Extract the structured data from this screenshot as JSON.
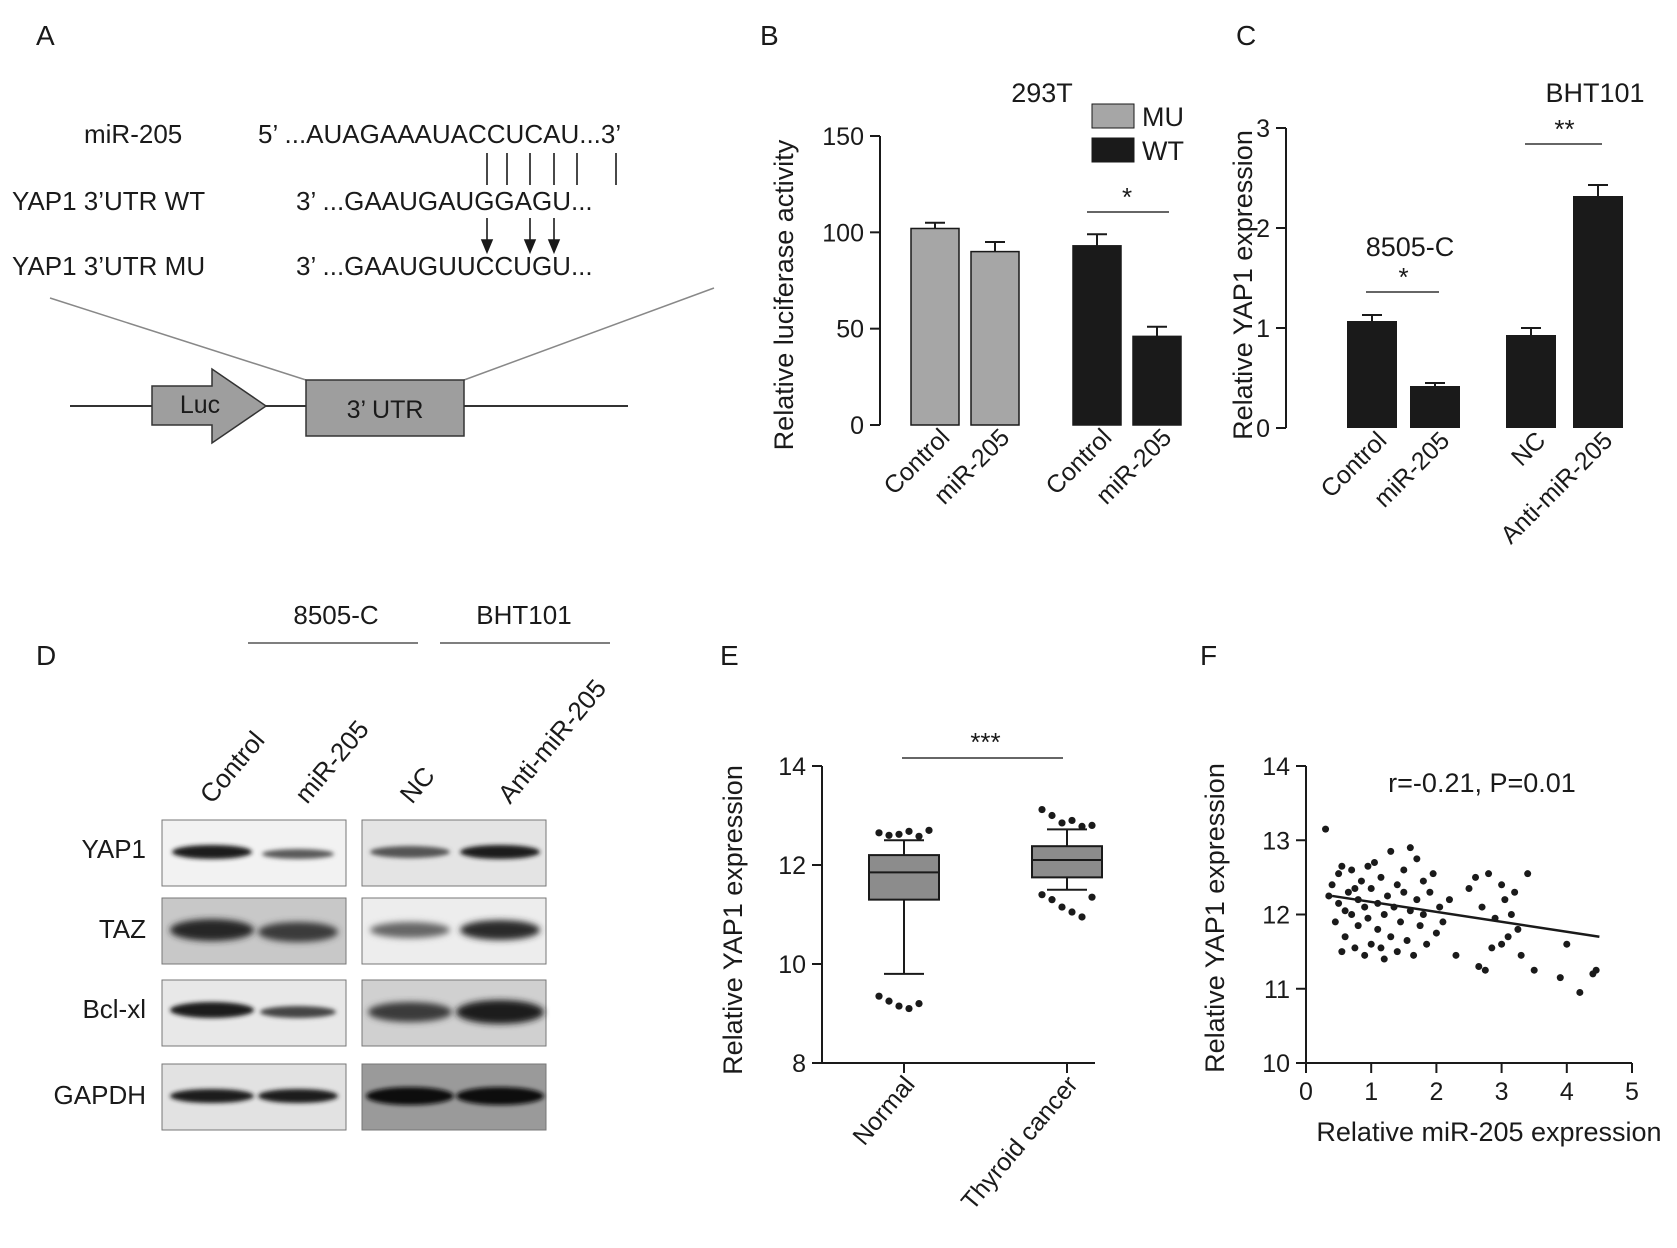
{
  "panels": {
    "A": {
      "letter": "A",
      "rows": [
        {
          "label": "miR-205",
          "seq": "5’ ...AUAGAAAUACCUCAU...3’"
        },
        {
          "label": "YAP1 3’UTR WT",
          "seq": "3’ ...GAAUGAUGGAGU..."
        },
        {
          "label": "YAP1 3’UTR MU",
          "seq": "3’ ...GAAUGUUCCUGU..."
        }
      ],
      "construct": {
        "luc": "Luc",
        "utr": "3’ UTR"
      }
    },
    "B": {
      "letter": "B"
    },
    "C": {
      "letter": "C"
    },
    "D": {
      "letter": "D",
      "groups": [
        "8505-C",
        "BHT101"
      ],
      "lanes": [
        "Control",
        "miR-205",
        "NC",
        "Anti-miR-205"
      ],
      "proteins": [
        "YAP1",
        "TAZ",
        "Bcl-xl",
        "GAPDH"
      ]
    },
    "E": {
      "letter": "E"
    },
    "F": {
      "letter": "F"
    }
  },
  "chart_data": [
    {
      "panel": "B",
      "type": "bar",
      "title": "293T",
      "ylabel": "Relative luciferase activity",
      "ylim": [
        0,
        150
      ],
      "yticks": [
        0,
        50,
        100,
        150
      ],
      "categories": [
        "Control",
        "miR-205",
        "Control",
        "miR-205"
      ],
      "values": [
        102,
        90,
        93,
        46
      ],
      "errors": [
        3,
        5,
        6,
        5
      ],
      "groups": [
        "MU",
        "MU",
        "WT",
        "WT"
      ],
      "legend": [
        {
          "name": "MU",
          "color": "#a6a6a6"
        },
        {
          "name": "WT",
          "color": "#1a1a1a"
        }
      ],
      "legend_position": "top-right",
      "significance": [
        {
          "from": 2,
          "to": 3,
          "label": "*"
        }
      ]
    },
    {
      "panel": "C",
      "type": "bar",
      "title": "BHT101",
      "ylabel": "Relative YAP1 expression",
      "ylim": [
        0,
        3
      ],
      "yticks": [
        0,
        1,
        2,
        3
      ],
      "categories": [
        "Control",
        "miR-205",
        "NC",
        "Anti-miR-205"
      ],
      "values": [
        1.07,
        0.42,
        0.93,
        2.32
      ],
      "errors": [
        0.06,
        0.03,
        0.07,
        0.11
      ],
      "color": "#1a1a1a",
      "annotations": [
        {
          "text": "8505-C",
          "near": [
            0,
            1
          ]
        }
      ],
      "significance": [
        {
          "from": 0,
          "to": 1,
          "label": "*"
        },
        {
          "from": 2,
          "to": 3,
          "label": "**"
        }
      ]
    },
    {
      "panel": "E",
      "type": "box",
      "ylabel": "Relative YAP1 expression",
      "ylim": [
        8,
        14
      ],
      "yticks": [
        8,
        10,
        12,
        14
      ],
      "categories": [
        "Normal",
        "Thyroid cancer"
      ],
      "boxes": [
        {
          "name": "Normal",
          "q1": 11.3,
          "median": 11.85,
          "q3": 12.2,
          "whisker_low": 9.8,
          "whisker_high": 12.5,
          "outliers": [
            12.65,
            12.6,
            12.62,
            12.68,
            12.58,
            12.7,
            9.35,
            9.25,
            9.15,
            9.1,
            9.2
          ]
        },
        {
          "name": "Thyroid cancer",
          "q1": 11.75,
          "median": 12.1,
          "q3": 12.38,
          "whisker_low": 11.5,
          "whisker_high": 12.72,
          "outliers": [
            13.12,
            13.0,
            12.85,
            12.9,
            12.78,
            12.8,
            11.4,
            11.3,
            11.15,
            11.05,
            10.95,
            11.35
          ]
        }
      ],
      "color": "#8c8c8c",
      "significance": [
        {
          "from": 0,
          "to": 1,
          "label": "***"
        }
      ]
    },
    {
      "panel": "F",
      "type": "scatter",
      "xlabel": "Relative miR-205 expression",
      "ylabel": "Relative YAP1 expression",
      "xlim": [
        0,
        5
      ],
      "ylim": [
        10,
        14
      ],
      "xticks": [
        0,
        1,
        2,
        3,
        4,
        5
      ],
      "yticks": [
        10,
        11,
        12,
        13,
        14
      ],
      "annotation": "r=-0.21, P=0.01",
      "regression": {
        "x": [
          0.4,
          4.5
        ],
        "y": [
          12.25,
          11.7
        ]
      },
      "points": [
        [
          0.3,
          13.15
        ],
        [
          0.35,
          12.25
        ],
        [
          0.4,
          12.4
        ],
        [
          0.45,
          11.9
        ],
        [
          0.5,
          12.15
        ],
        [
          0.5,
          12.55
        ],
        [
          0.55,
          11.5
        ],
        [
          0.6,
          12.05
        ],
        [
          0.6,
          11.7
        ],
        [
          0.65,
          12.3
        ],
        [
          0.7,
          12.0
        ],
        [
          0.7,
          12.6
        ],
        [
          0.75,
          11.55
        ],
        [
          0.8,
          12.2
        ],
        [
          0.8,
          11.85
        ],
        [
          0.85,
          12.45
        ],
        [
          0.9,
          11.45
        ],
        [
          0.9,
          12.1
        ],
        [
          0.95,
          11.95
        ],
        [
          1.0,
          12.35
        ],
        [
          1.0,
          11.6
        ],
        [
          1.05,
          12.7
        ],
        [
          1.1,
          11.8
        ],
        [
          1.1,
          12.15
        ],
        [
          1.15,
          12.5
        ],
        [
          1.2,
          11.4
        ],
        [
          1.2,
          12.0
        ],
        [
          1.25,
          12.25
        ],
        [
          1.3,
          11.7
        ],
        [
          1.3,
          12.85
        ],
        [
          1.35,
          12.1
        ],
        [
          1.4,
          11.5
        ],
        [
          1.4,
          12.4
        ],
        [
          1.45,
          11.9
        ],
        [
          1.5,
          12.3
        ],
        [
          1.5,
          12.6
        ],
        [
          1.55,
          11.65
        ],
        [
          1.6,
          12.05
        ],
        [
          1.6,
          12.9
        ],
        [
          1.65,
          11.45
        ],
        [
          1.7,
          12.2
        ],
        [
          1.7,
          12.75
        ],
        [
          1.75,
          11.85
        ],
        [
          1.8,
          12.45
        ],
        [
          1.8,
          12.0
        ],
        [
          1.85,
          11.6
        ],
        [
          1.9,
          12.3
        ],
        [
          1.95,
          12.55
        ],
        [
          2.0,
          11.75
        ],
        [
          2.05,
          12.1
        ],
        [
          2.1,
          11.9
        ],
        [
          2.2,
          12.2
        ],
        [
          2.3,
          11.45
        ],
        [
          2.5,
          12.35
        ],
        [
          2.6,
          12.5
        ],
        [
          2.65,
          11.3
        ],
        [
          2.7,
          12.1
        ],
        [
          2.75,
          11.25
        ],
        [
          2.8,
          12.55
        ],
        [
          2.85,
          11.55
        ],
        [
          2.9,
          11.95
        ],
        [
          3.0,
          12.4
        ],
        [
          3.0,
          11.6
        ],
        [
          3.05,
          12.2
        ],
        [
          3.1,
          11.7
        ],
        [
          3.15,
          12.0
        ],
        [
          3.2,
          12.3
        ],
        [
          3.25,
          11.8
        ],
        [
          3.3,
          11.45
        ],
        [
          3.4,
          12.55
        ],
        [
          3.5,
          11.25
        ],
        [
          3.9,
          11.15
        ],
        [
          4.0,
          11.6
        ],
        [
          4.2,
          10.95
        ],
        [
          4.4,
          11.2
        ],
        [
          4.45,
          11.25
        ],
        [
          0.55,
          12.65
        ],
        [
          0.75,
          12.35
        ],
        [
          0.95,
          12.65
        ],
        [
          1.15,
          11.55
        ]
      ]
    }
  ]
}
